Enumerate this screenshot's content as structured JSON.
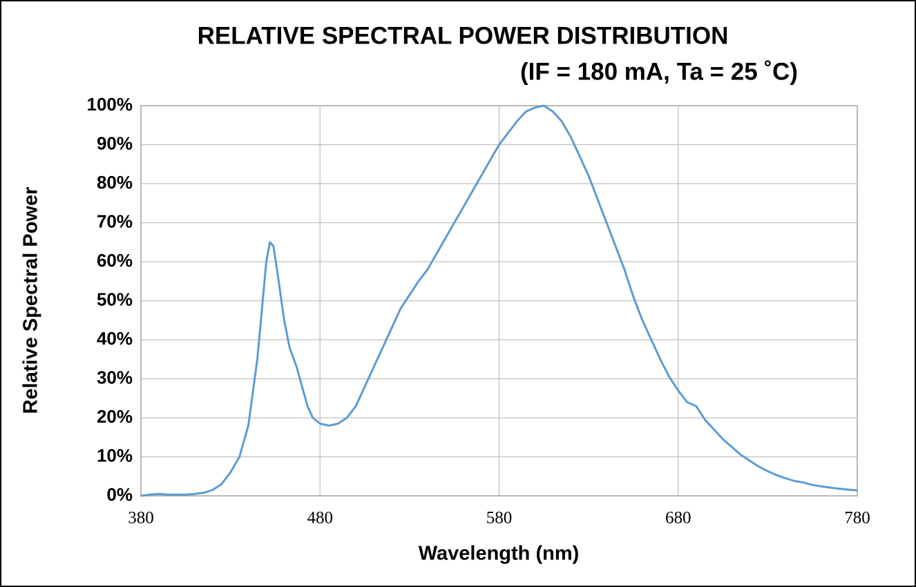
{
  "chart_data": {
    "type": "line",
    "title": "RELATIVE SPECTRAL POWER DISTRIBUTION",
    "subtitle": "(IF = 180 mA, Ta = 25 ˚C)",
    "x_label": "Wavelength (nm)",
    "y_label": "Relative Spectral Power",
    "color": "#5b9bd5",
    "grid": true,
    "x": [
      380,
      385,
      390,
      395,
      400,
      405,
      410,
      415,
      420,
      425,
      430,
      435,
      440,
      445,
      448,
      450,
      452,
      454,
      456,
      460,
      463,
      467,
      470,
      473,
      476,
      480,
      485,
      490,
      495,
      500,
      505,
      510,
      515,
      520,
      525,
      530,
      535,
      540,
      545,
      550,
      555,
      560,
      565,
      570,
      575,
      580,
      585,
      590,
      595,
      600,
      605,
      610,
      615,
      620,
      625,
      630,
      635,
      640,
      645,
      650,
      655,
      660,
      665,
      670,
      675,
      680,
      685,
      690,
      695,
      700,
      705,
      710,
      715,
      720,
      725,
      730,
      735,
      740,
      745,
      750,
      755,
      760,
      765,
      770,
      775,
      780
    ],
    "values": [
      0,
      0.3,
      0.5,
      0.3,
      0.3,
      0.3,
      0.5,
      0.8,
      1.5,
      3,
      6,
      10,
      18,
      35,
      50,
      60,
      65,
      64,
      58,
      45,
      38,
      33,
      28,
      23,
      20,
      18.5,
      18,
      18.5,
      20,
      23,
      28,
      33,
      38,
      43,
      48,
      51.5,
      55,
      58,
      62,
      66,
      70,
      74,
      78,
      82,
      86,
      90,
      93,
      96,
      98.5,
      99.5,
      100,
      98.5,
      96,
      92,
      87,
      82,
      76,
      70,
      64,
      58,
      51,
      45,
      40,
      35,
      30.5,
      27,
      24,
      23,
      19.5,
      17,
      14.5,
      12.5,
      10.5,
      9,
      7.5,
      6.3,
      5.3,
      4.5,
      3.8,
      3.4,
      2.8,
      2.4,
      2.1,
      1.8,
      1.6,
      1.4
    ],
    "xlim": [
      380,
      780
    ],
    "xticks": [
      380,
      480,
      580,
      680,
      780
    ],
    "ylim": [
      0,
      100
    ],
    "yticks": [
      {
        "value": 0,
        "label": "0%"
      },
      {
        "value": 10,
        "label": "10%"
      },
      {
        "value": 20,
        "label": "20%"
      },
      {
        "value": 30,
        "label": "30%"
      },
      {
        "value": 40,
        "label": "40%"
      },
      {
        "value": 50,
        "label": "50%"
      },
      {
        "value": 60,
        "label": "60%"
      },
      {
        "value": 70,
        "label": "70%"
      },
      {
        "value": 80,
        "label": "80%"
      },
      {
        "value": 90,
        "label": "90%"
      },
      {
        "value": 100,
        "label": "100%"
      }
    ]
  }
}
